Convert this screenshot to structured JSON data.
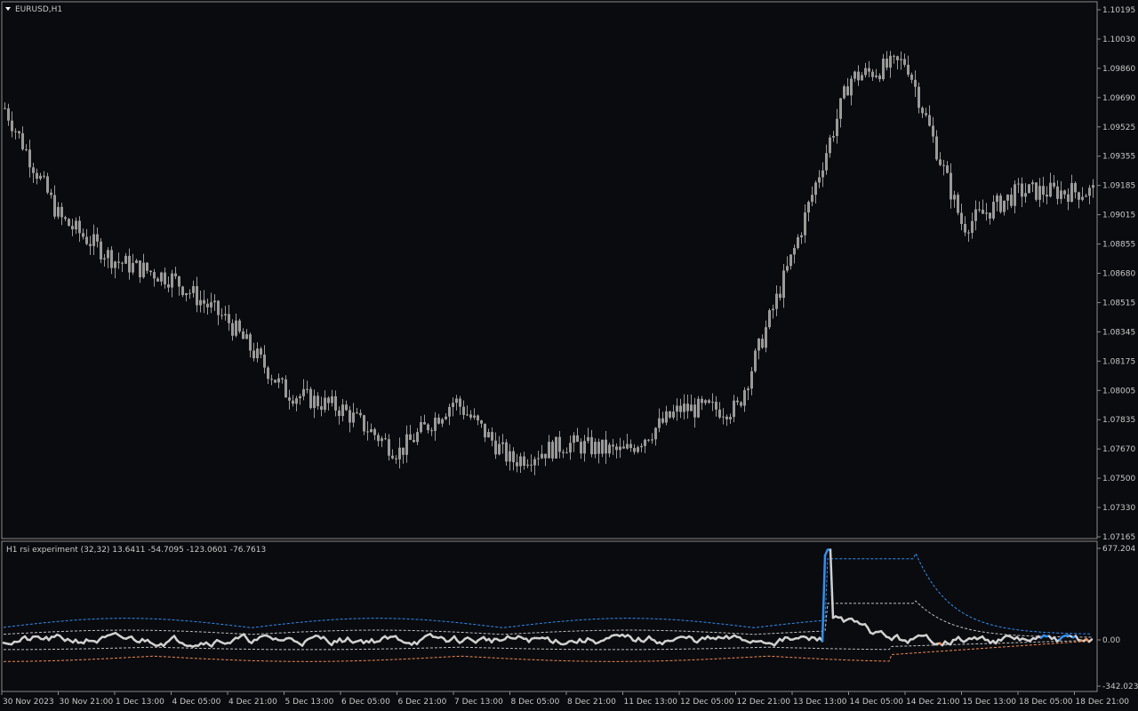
{
  "main_chart": {
    "title": "EURUSD,H1",
    "price_ticks": [
      "1.10195",
      "1.10030",
      "1.09860",
      "1.09690",
      "1.09525",
      "1.09355",
      "1.09185",
      "1.09015",
      "1.08855",
      "1.08680",
      "1.08515",
      "1.08345",
      "1.08175",
      "1.08005",
      "1.07835",
      "1.07670",
      "1.07500",
      "1.07330",
      "1.07165"
    ]
  },
  "indicator": {
    "title": "H1 rsi experiment (32,32) 13.6411 -54.7095 -123.0601 -76.7613",
    "ticks": [
      "677.204",
      "0.00",
      "-342.0238"
    ]
  },
  "time_axis": {
    "labels": [
      "30 Nov 2023",
      "30 Nov 21:00",
      "1 Dec 13:00",
      "4 Dec 05:00",
      "4 Dec 21:00",
      "5 Dec 13:00",
      "6 Dec 05:00",
      "6 Dec 21:00",
      "7 Dec 13:00",
      "8 Dec 05:00",
      "8 Dec 21:00",
      "11 Dec 13:00",
      "12 Dec 05:00",
      "12 Dec 21:00",
      "13 Dec 13:00",
      "14 Dec 05:00",
      "14 Dec 21:00",
      "15 Dec 13:00",
      "18 Dec 05:00",
      "18 Dec 21:00"
    ]
  },
  "colors": {
    "background": "#0a0b0f",
    "candle": "#9a9a9a",
    "axis": "#8a8a8a",
    "rsi_neutral": "#d0d0d0",
    "rsi_up": "#2f8ff0",
    "rsi_down": "#f08a50",
    "band_up": "#2f8ff0",
    "band_down": "#f08a50",
    "band_mid": "#bdbdbd"
  },
  "chart_data": {
    "type": "candlestick",
    "symbol": "EURUSD",
    "timeframe": "H1",
    "ylim": [
      1.07165,
      1.10195
    ],
    "close_path": [
      [
        "30 Nov 2023",
        1.0965
      ],
      [
        "30 Nov 21:00",
        1.09
      ],
      [
        "1 Dec 13:00",
        1.0875
      ],
      [
        "4 Dec 05:00",
        1.0865
      ],
      [
        "4 Dec 21:00",
        1.084
      ],
      [
        "5 Dec 13:00",
        1.08
      ],
      [
        "6 Dec 05:00",
        1.079
      ],
      [
        "6 Dec 21:00",
        1.0765
      ],
      [
        "7 Dec 13:00",
        1.0795
      ],
      [
        "8 Dec 05:00",
        1.076
      ],
      [
        "8 Dec 21:00",
        1.077
      ],
      [
        "11 Dec 13:00",
        1.0765
      ],
      [
        "12 Dec 05:00",
        1.079
      ],
      [
        "12 Dec 21:00",
        1.079
      ],
      [
        "13 Dec 13:00",
        1.088
      ],
      [
        "14 Dec 05:00",
        1.098
      ],
      [
        "14 Dec 21:00",
        1.099
      ],
      [
        "15 Dec 13:00",
        1.0895
      ],
      [
        "18 Dec 05:00",
        1.0915
      ],
      [
        "18 Dec 21:00",
        1.0915
      ]
    ],
    "indicator": {
      "name": "rsi experiment (32,32)",
      "ylim": [
        -342.0238,
        677.204
      ],
      "values": [
        13.6411,
        -54.7095,
        -123.0601,
        -76.7613
      ]
    }
  }
}
